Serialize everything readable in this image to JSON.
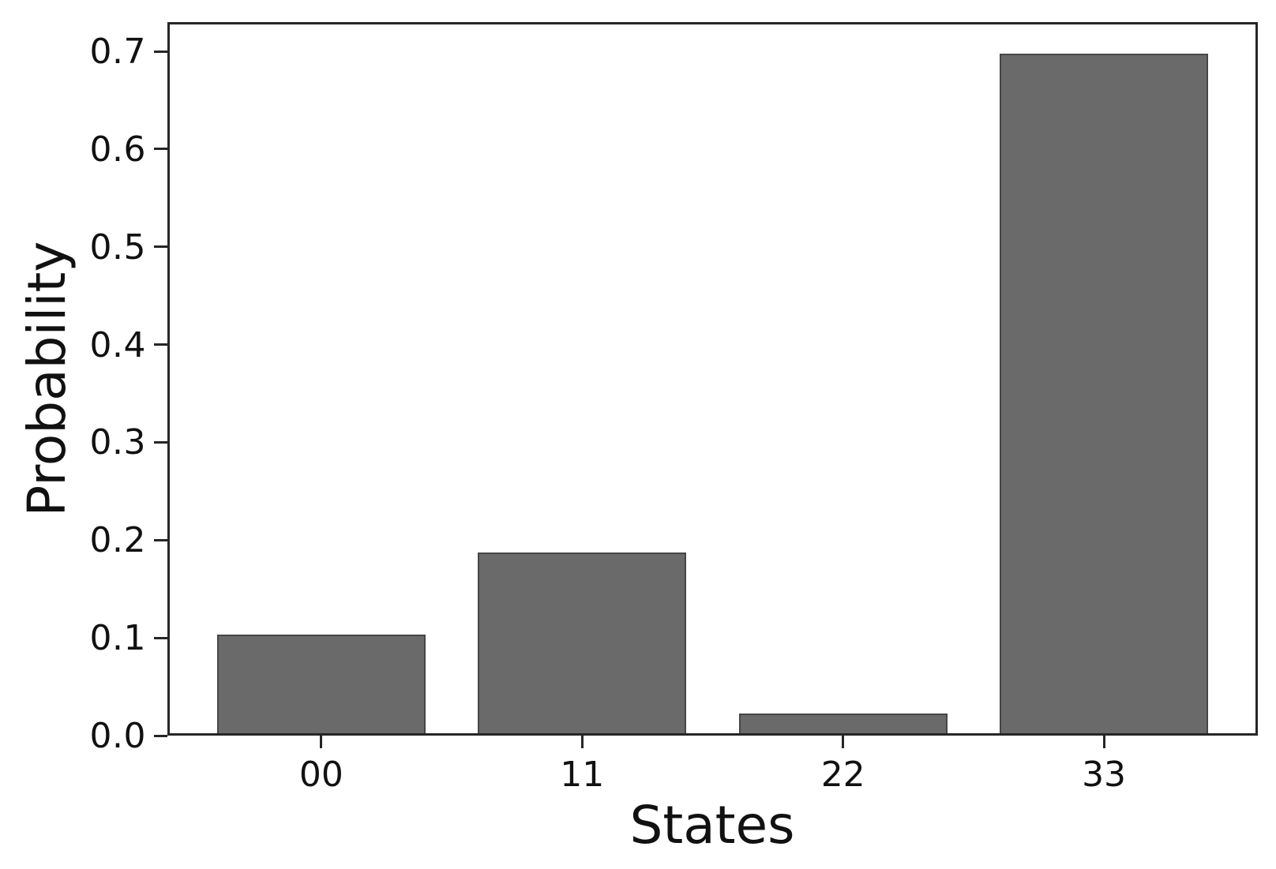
{
  "chart_data": {
    "type": "bar",
    "title": "",
    "xlabel": "States",
    "ylabel": "Probability",
    "categories": [
      "00",
      "11",
      "22",
      "33"
    ],
    "values": [
      0.101,
      0.185,
      0.02,
      0.695
    ],
    "yticks": [
      0.0,
      0.1,
      0.2,
      0.3,
      0.4,
      0.5,
      0.6,
      0.7
    ],
    "ytick_labels": [
      "0.0",
      "0.1",
      "0.2",
      "0.3",
      "0.4",
      "0.5",
      "0.6",
      "0.7"
    ],
    "ylim": [
      0,
      0.73
    ],
    "xlim": [
      -0.59,
      3.59
    ],
    "bar_half_width": 0.4,
    "bar_color": "#6a6a6a",
    "bar_edge_color": "#282828",
    "axis_color": "#262626",
    "text_color": "#111111",
    "background_color": "#ffffff",
    "grid": false,
    "legend": null
  }
}
